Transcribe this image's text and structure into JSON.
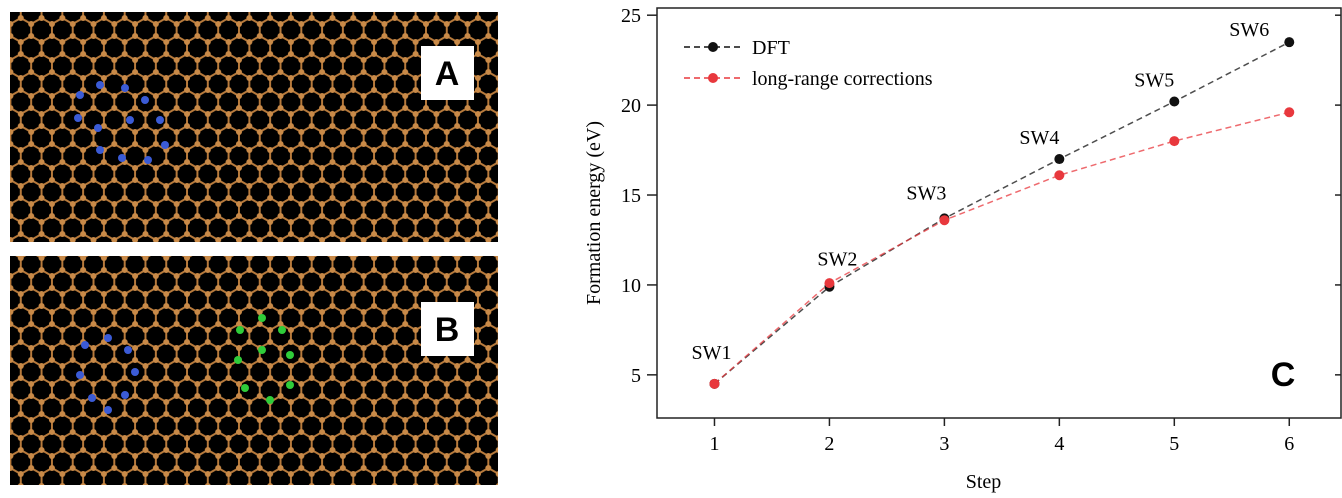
{
  "panel_labels": [
    "A",
    "B"
  ],
  "chart_data": {
    "type": "line",
    "panel_label": "C",
    "x_label": "Step",
    "y_label": "Formation energy (eV)",
    "x": [
      1,
      2,
      3,
      4,
      5,
      6
    ],
    "series": [
      {
        "name": "DFT",
        "color": "#111111",
        "values": [
          4.5,
          9.9,
          13.7,
          17.0,
          20.2,
          23.5
        ]
      },
      {
        "name": "long-range corrections",
        "color": "#e8383d",
        "values": [
          4.5,
          10.1,
          13.6,
          16.1,
          18.0,
          19.6
        ]
      }
    ],
    "point_labels": [
      "SW1",
      "SW2",
      "SW3",
      "SW4",
      "SW5",
      "SW6"
    ],
    "xlim": [
      0.5,
      6.45
    ],
    "ylim": [
      2.6,
      25.4
    ],
    "xticks": [
      1,
      2,
      3,
      4,
      5,
      6
    ],
    "yticks": [
      5,
      10,
      15,
      20,
      25
    ],
    "legend": "upper left"
  }
}
